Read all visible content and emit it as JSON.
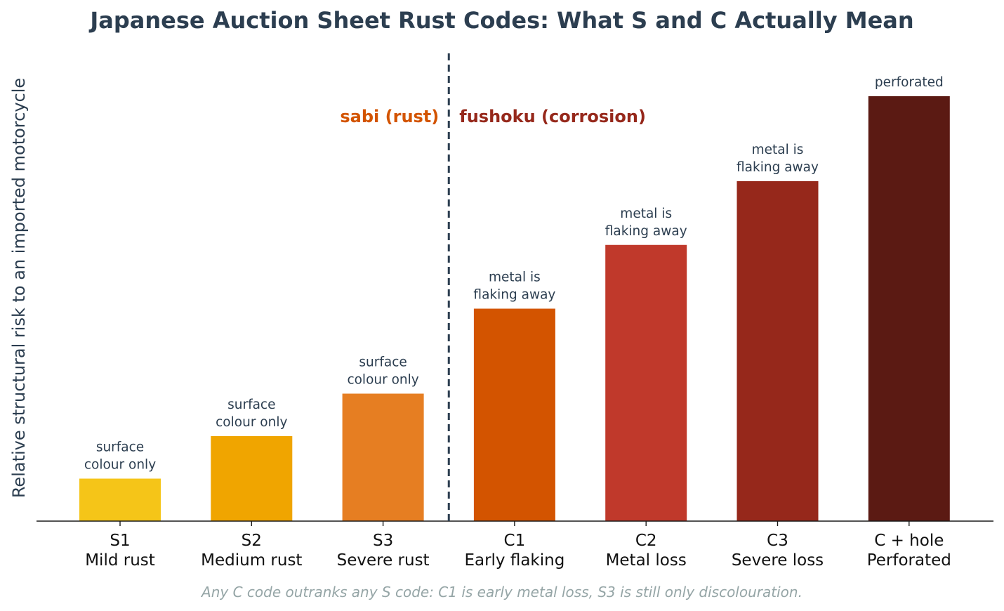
{
  "chart_data": {
    "type": "bar",
    "title": "Japanese Auction Sheet Rust Codes: What S and C Actually Mean",
    "xlabel": "",
    "ylabel": "Relative structural risk to an imported motorcycle",
    "ylim": [
      0,
      11
    ],
    "grid": false,
    "categories": [
      [
        "S1",
        "Mild rust"
      ],
      [
        "S2",
        "Medium rust"
      ],
      [
        "S3",
        "Severe rust"
      ],
      [
        "C1",
        "Early flaking"
      ],
      [
        "C2",
        "Metal loss"
      ],
      [
        "C3",
        "Severe loss"
      ],
      [
        "C + hole",
        "Perforated"
      ]
    ],
    "values": [
      1,
      2,
      3,
      5,
      6.5,
      8,
      10
    ],
    "bar_labels": [
      [
        "surface",
        "colour only"
      ],
      [
        "surface",
        "colour only"
      ],
      [
        "surface",
        "colour only"
      ],
      [
        "metal is",
        "flaking away"
      ],
      [
        "metal is",
        "flaking away"
      ],
      [
        "metal is",
        "flaking away"
      ],
      [
        "perforated"
      ]
    ],
    "colors": [
      "#f5c518",
      "#f0a500",
      "#e67e22",
      "#d35400",
      "#c0392b",
      "#96281b",
      "#5b1a13"
    ],
    "divider_between": [
      "S3",
      "C1"
    ],
    "group_labels": [
      {
        "text": "sabi (rust)",
        "color": "#d35400"
      },
      {
        "text": "fushoku (corrosion)",
        "color": "#96281b"
      }
    ],
    "footnote": "Any C code outranks any S code: C1 is early metal loss, S3 is still only discolouration."
  }
}
